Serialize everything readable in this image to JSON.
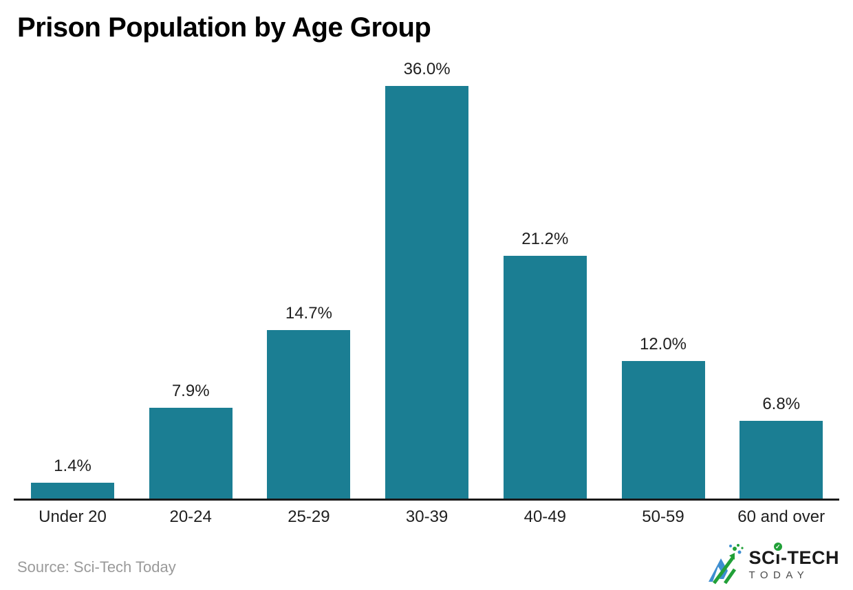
{
  "title": "Prison Population by Age Group",
  "source": "Source: Sci-Tech Today",
  "logo": {
    "prefix": "SC",
    "i_char": "ı",
    "check": "✓",
    "suffix": "-TECH",
    "sub": "TODAY"
  },
  "colors": {
    "bar": "#1B7E93",
    "axis": "#1a1a1a",
    "label": "#1f1f1f",
    "title": "#000000",
    "source": "#9a9a9a",
    "logo_black": "#1a1a1a",
    "logo_green": "#21A038",
    "logo_blue": "#3E8ED0"
  },
  "chart_data": {
    "type": "bar",
    "categories": [
      "Under 20",
      "20-24",
      "25-29",
      "30-39",
      "40-49",
      "50-59",
      "60 and over"
    ],
    "values": [
      1.4,
      7.9,
      14.7,
      36.0,
      21.2,
      12.0,
      6.8
    ],
    "labels": [
      "1.4%",
      "7.9%",
      "14.7%",
      "36.0%",
      "21.2%",
      "12.0%",
      "6.8%"
    ],
    "title": "Prison Population by Age Group",
    "xlabel": "",
    "ylabel": "",
    "ylim": [
      0,
      36
    ],
    "grid": false,
    "legend": null,
    "bar_color": "#1B7E93"
  }
}
